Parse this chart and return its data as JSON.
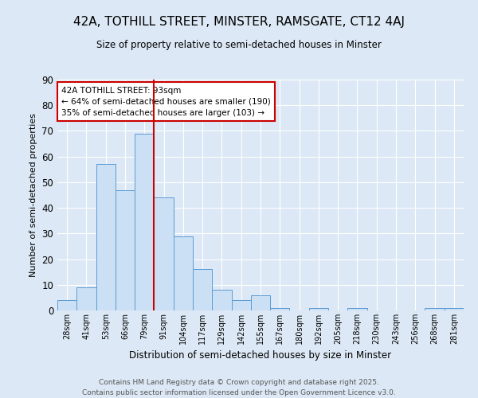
{
  "title": "42A, TOTHILL STREET, MINSTER, RAMSGATE, CT12 4AJ",
  "subtitle": "Size of property relative to semi-detached houses in Minster",
  "xlabel": "Distribution of semi-detached houses by size in Minster",
  "ylabel": "Number of semi-detached properties",
  "bins": [
    "28sqm",
    "41sqm",
    "53sqm",
    "66sqm",
    "79sqm",
    "91sqm",
    "104sqm",
    "117sqm",
    "129sqm",
    "142sqm",
    "155sqm",
    "167sqm",
    "180sqm",
    "192sqm",
    "205sqm",
    "218sqm",
    "230sqm",
    "243sqm",
    "256sqm",
    "268sqm",
    "281sqm"
  ],
  "values": [
    4,
    9,
    57,
    47,
    69,
    44,
    29,
    16,
    8,
    4,
    6,
    1,
    0,
    1,
    0,
    1,
    0,
    0,
    0,
    1,
    1
  ],
  "bar_color": "#cce0f5",
  "bar_edge_color": "#5b9bd5",
  "vline_bin_index": 5,
  "vline_color": "#cc0000",
  "annotation_title": "42A TOTHILL STREET: 93sqm",
  "annotation_line1": "← 64% of semi-detached houses are smaller (190)",
  "annotation_line2": "35% of semi-detached houses are larger (103) →",
  "annotation_box_color": "#ffffff",
  "annotation_box_edge": "#cc0000",
  "ylim": [
    0,
    90
  ],
  "yticks": [
    0,
    10,
    20,
    30,
    40,
    50,
    60,
    70,
    80,
    90
  ],
  "footnote1": "Contains HM Land Registry data © Crown copyright and database right 2025.",
  "footnote2": "Contains public sector information licensed under the Open Government Licence v3.0.",
  "bg_color": "#dce8f5"
}
